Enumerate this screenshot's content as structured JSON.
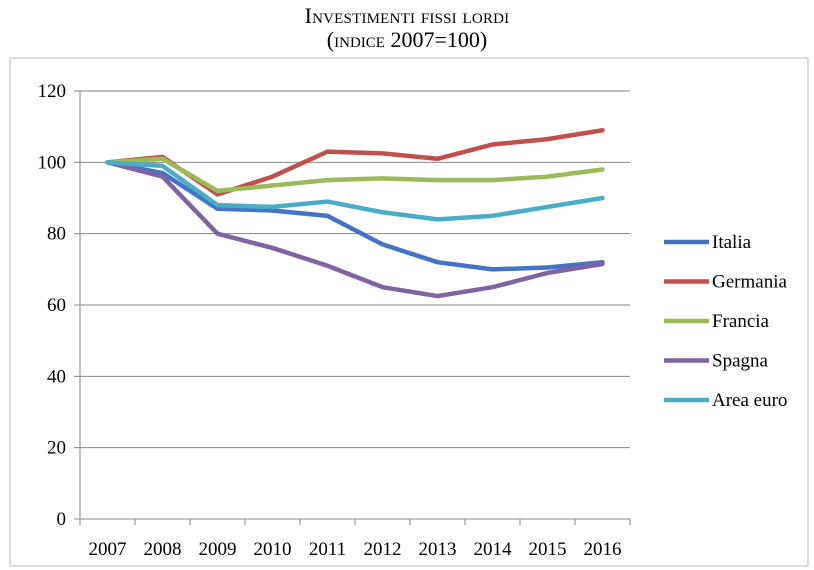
{
  "header": {
    "title": "Investimenti fissi lordi",
    "subtitle": "(indice 2007=100)"
  },
  "chart_data": {
    "type": "line",
    "title": "Investimenti fissi lordi",
    "subtitle": "(indice 2007=100)",
    "xlabel": "",
    "ylabel": "",
    "x": [
      "2007",
      "2008",
      "2009",
      "2010",
      "2011",
      "2012",
      "2013",
      "2014",
      "2015",
      "2016"
    ],
    "ylim": [
      0,
      120
    ],
    "yticks": [
      0,
      20,
      40,
      60,
      80,
      100,
      120
    ],
    "grid": true,
    "legend_position": "right",
    "series": [
      {
        "name": "Italia",
        "color": "#4472c4",
        "values": [
          100,
          97,
          87,
          86.5,
          85,
          77,
          72,
          70,
          70.5,
          72
        ]
      },
      {
        "name": "Germania",
        "color": "#c0504d",
        "values": [
          100,
          101.5,
          91,
          96,
          103,
          102.5,
          101,
          105,
          106.5,
          109
        ]
      },
      {
        "name": "Francia",
        "color": "#9bbb59",
        "values": [
          100,
          101,
          92,
          93.5,
          95,
          95.5,
          95,
          95,
          96,
          98
        ]
      },
      {
        "name": "Spagna",
        "color": "#8064a2",
        "values": [
          100,
          96,
          80,
          76,
          71,
          65,
          62.5,
          65,
          69,
          71.5
        ]
      },
      {
        "name": "Area euro",
        "color": "#4bacc6",
        "values": [
          100,
          99,
          88,
          87.5,
          89,
          86,
          84,
          85,
          87.5,
          90
        ]
      }
    ]
  }
}
